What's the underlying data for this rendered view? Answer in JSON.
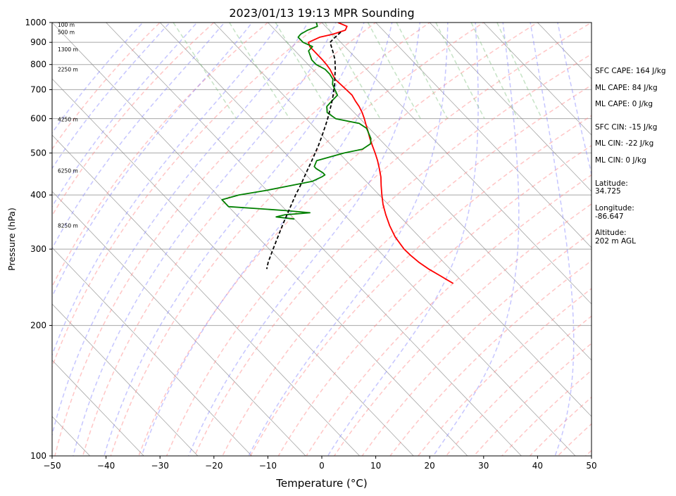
{
  "chart_data": {
    "type": "line",
    "title": "2023/01/13 19:13 MPR Sounding",
    "xlabel": "Temperature (°C)",
    "ylabel": "Pressure (hPa)",
    "xlim": [
      -50,
      50
    ],
    "ylim": [
      1000,
      100
    ],
    "y_scale": "log",
    "x_ticks": [
      "−50",
      "−40",
      "−30",
      "−20",
      "−10",
      "0",
      "10",
      "20",
      "30",
      "40",
      "50"
    ],
    "y_ticks": [
      "100",
      "200",
      "300",
      "400",
      "500",
      "600",
      "700",
      "800",
      "900",
      "1000"
    ],
    "colors": {
      "temperature": "#ff0000",
      "dewpoint": "#008000",
      "parcel": "#000000",
      "dry_adiabats": "#ff8080",
      "moist_adiabats": "#8080ff",
      "mixing_ratio": "#80c080",
      "isotherms": "#808080"
    },
    "series": [
      {
        "name": "",
        "style": "temperature",
        "pressure": [
          1000,
          980,
          960,
          940,
          925,
          900,
          880,
          850,
          820,
          800,
          780,
          760,
          740,
          720,
          700,
          680,
          660,
          640,
          620,
          600,
          580,
          560,
          540,
          520,
          500,
          480,
          460,
          440,
          420,
          400,
          380,
          360,
          340,
          320,
          300,
          290,
          280,
          270,
          260,
          250
        ],
        "values": [
          3,
          4,
          3,
          0,
          -3,
          -6,
          -6.5,
          -6.5,
          -6.5,
          -6.6,
          -6.8,
          -7.2,
          -7.6,
          -7.5,
          -7.4,
          -7.3,
          -7.7,
          -8,
          -8.5,
          -9.2,
          -10,
          -10.8,
          -11.7,
          -12.5,
          -13.3,
          -14.2,
          -15.3,
          -16.5,
          -18,
          -19.5,
          -21,
          -22.3,
          -23.5,
          -24.5,
          -25,
          -24.9,
          -24.6,
          -24,
          -23,
          -22
        ]
      },
      {
        "name": "",
        "style": "dewpoint",
        "pressure": [
          1000,
          980,
          960,
          940,
          925,
          900,
          880,
          860,
          840,
          820,
          800,
          780,
          760,
          740,
          720,
          700,
          680,
          660,
          640,
          620,
          600,
          585,
          570,
          555,
          540,
          525,
          510,
          500,
          480,
          465,
          460,
          450,
          445,
          440,
          430,
          420,
          410,
          400,
          390,
          380,
          376,
          372,
          368,
          364,
          360,
          356,
          352
        ],
        "values": [
          -1,
          -1.5,
          -4,
          -6,
          -7,
          -7,
          -6,
          -7.5,
          -8,
          -8.5,
          -8.5,
          -7.7,
          -7.7,
          -8,
          -9,
          -9.5,
          -10,
          -12,
          -14,
          -15,
          -14.5,
          -11,
          -10.5,
          -11,
          -11.5,
          -12.5,
          -15,
          -19,
          -25.5,
          -27,
          -27,
          -26.5,
          -26.5,
          -27.5,
          -30,
          -35,
          -40,
          -46,
          -50,
          -50,
          -50,
          -45,
          -40,
          -36,
          -41,
          -43,
          -40
        ]
      },
      {
        "name": "",
        "style": "parcel",
        "pressure": [
          950,
          920,
          900,
          880,
          850,
          820,
          800,
          780,
          750,
          720,
          700,
          680,
          650,
          620,
          600,
          580,
          550,
          520,
          500,
          480,
          450,
          420,
          400,
          380,
          350,
          330,
          300,
          280,
          270
        ],
        "values": [
          1.8,
          -0.5,
          -2,
          -2.5,
          -3.3,
          -4.2,
          -5,
          -5.8,
          -7.2,
          -8.6,
          -9.7,
          -10.8,
          -12.6,
          -14.6,
          -16,
          -17.5,
          -19.9,
          -22.5,
          -24.4,
          -26.4,
          -29.6,
          -33,
          -35.5,
          -38,
          -42,
          -44.8,
          -49.3,
          -52.5,
          -54
        ]
      }
    ],
    "height_labels": [
      {
        "text": "100 m",
        "pressure": 988
      },
      {
        "text": "500 m",
        "pressure": 950
      },
      {
        "text": "1300 m",
        "pressure": 868
      },
      {
        "text": "2250 m",
        "pressure": 780
      },
      {
        "text": "4250 m",
        "pressure": 598
      },
      {
        "text": "6250 m",
        "pressure": 455
      },
      {
        "text": "8250 m",
        "pressure": 340
      }
    ],
    "grid": true
  },
  "stats": {
    "sfc_cape": "SFC CAPE: 164 J/kg",
    "ml_cape_1": "ML CAPE: 84 J/kg",
    "ml_cape_2": "ML CAPE: 0 J/kg",
    "sfc_cin": "SFC CIN: -15 J/kg",
    "ml_cin_1": "ML CIN: -22 J/kg",
    "ml_cin_2": "ML CIN: 0 J/kg",
    "latitude_label": "Latitude:",
    "latitude_value": "34.725",
    "longitude_label": "Longitude:",
    "longitude_value": "-86.647",
    "altitude_label": "Altitude:",
    "altitude_value": "202 m AGL"
  }
}
